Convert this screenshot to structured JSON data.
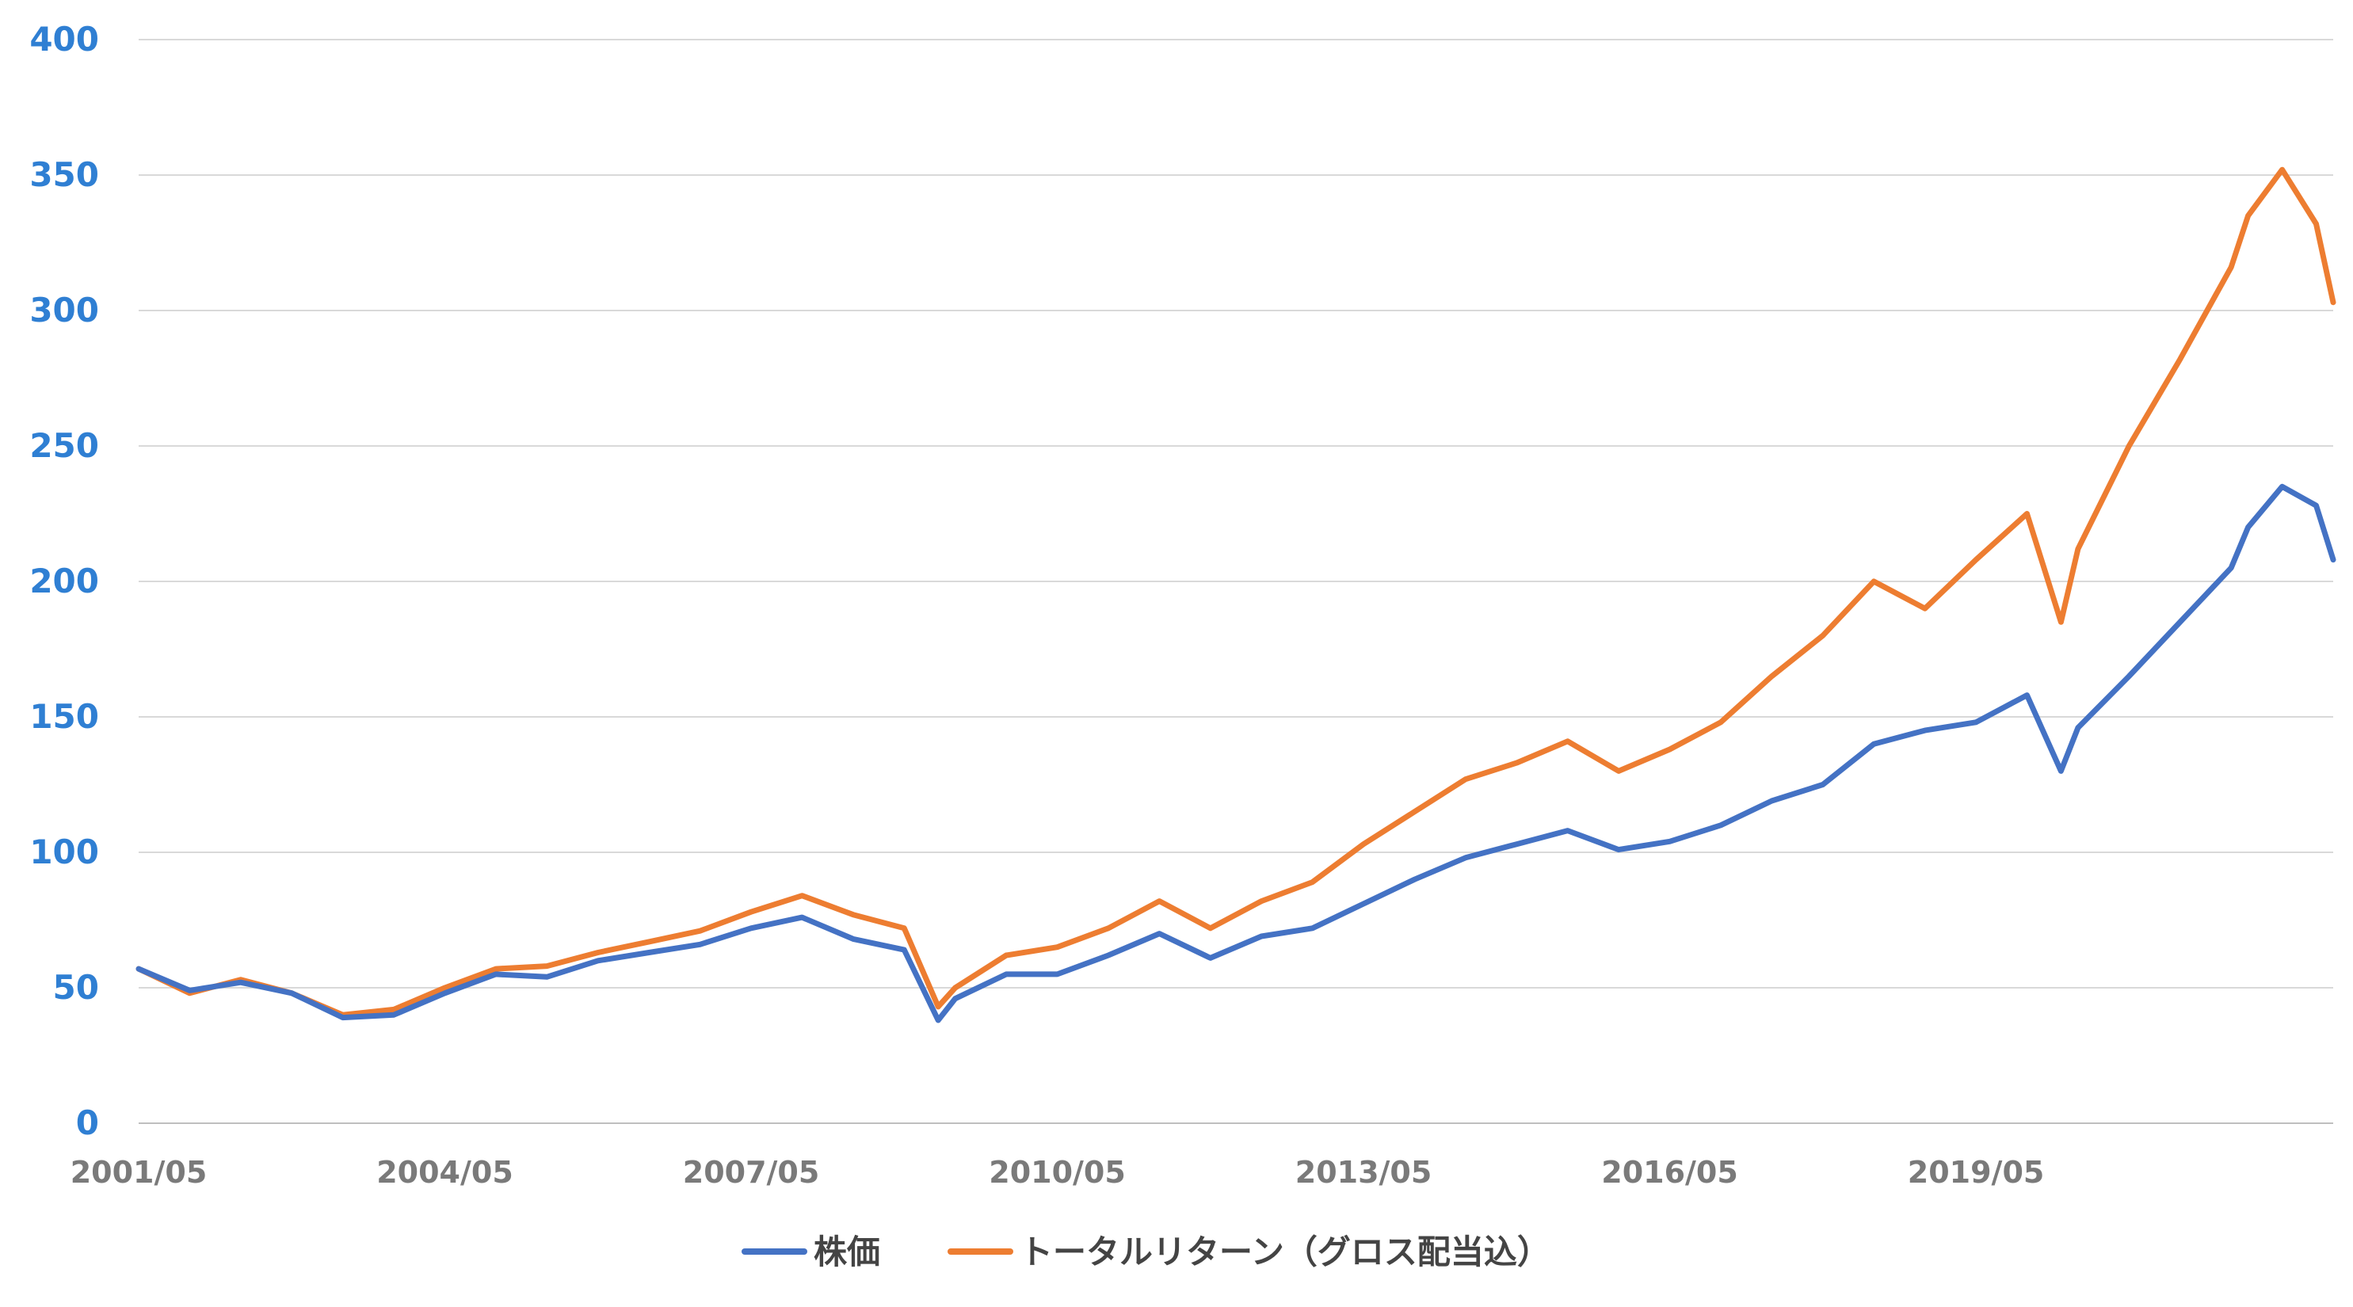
{
  "chart_data": {
    "type": "line",
    "title": "",
    "xlabel": "",
    "ylabel": "",
    "ylim": [
      0,
      400
    ],
    "y_ticks": [
      "0",
      "50",
      "100",
      "150",
      "200",
      "250",
      "300",
      "350",
      "400"
    ],
    "x_ticks": [
      "2001/05",
      "2004/05",
      "2007/05",
      "2010/05",
      "2013/05",
      "2016/05",
      "2019/05"
    ],
    "x": [
      "2001/05",
      "2001/11",
      "2002/05",
      "2002/11",
      "2003/05",
      "2003/11",
      "2004/05",
      "2004/11",
      "2005/05",
      "2005/11",
      "2006/05",
      "2006/11",
      "2007/05",
      "2007/11",
      "2008/05",
      "2008/11",
      "2009/03",
      "2009/05",
      "2009/11",
      "2010/05",
      "2010/11",
      "2011/05",
      "2011/11",
      "2012/05",
      "2012/11",
      "2013/05",
      "2013/11",
      "2014/05",
      "2014/11",
      "2015/05",
      "2015/11",
      "2016/05",
      "2016/11",
      "2017/05",
      "2017/11",
      "2018/05",
      "2018/11",
      "2019/05",
      "2019/11",
      "2020/03",
      "2020/05",
      "2020/11",
      "2021/05",
      "2021/11",
      "2022/01",
      "2022/05",
      "2022/09",
      "2022/11"
    ],
    "series": [
      {
        "name": "株価",
        "color": "#4472c4",
        "values": [
          57,
          49,
          52,
          48,
          39,
          40,
          48,
          55,
          54,
          60,
          63,
          66,
          72,
          76,
          68,
          64,
          38,
          46,
          55,
          55,
          62,
          70,
          61,
          69,
          72,
          81,
          90,
          98,
          103,
          108,
          101,
          104,
          110,
          119,
          125,
          140,
          145,
          148,
          158,
          130,
          146,
          165,
          185,
          205,
          220,
          235,
          228,
          208
        ]
      },
      {
        "name": "トータルリターン（グロス配当込）",
        "color": "#ed7d31",
        "values": [
          57,
          48,
          53,
          48,
          40,
          42,
          50,
          57,
          58,
          63,
          67,
          71,
          78,
          84,
          77,
          72,
          43,
          50,
          62,
          65,
          72,
          82,
          72,
          82,
          89,
          103,
          115,
          127,
          133,
          141,
          130,
          138,
          148,
          165,
          180,
          200,
          190,
          208,
          225,
          185,
          212,
          250,
          282,
          316,
          335,
          352,
          332,
          303
        ]
      }
    ]
  }
}
